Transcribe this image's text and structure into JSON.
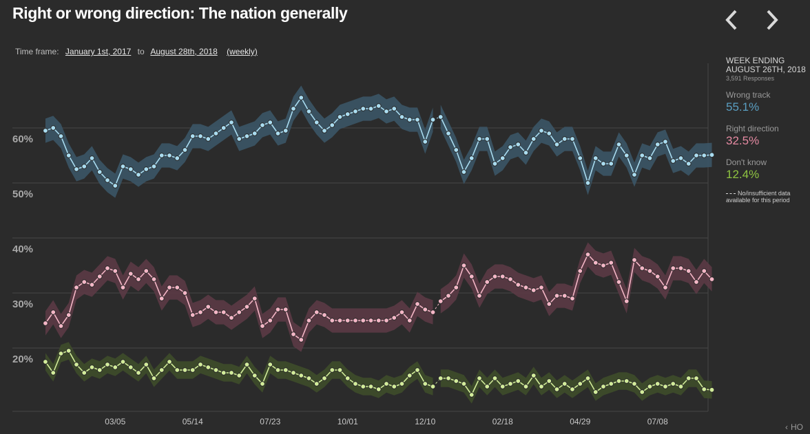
{
  "title": "Right or wrong direction: The nation generally",
  "timeframe": {
    "label": "Time frame:",
    "start": "January 1st, 2017",
    "to": "to",
    "end": "August 28th, 2018",
    "interval": "(weekly)"
  },
  "nav": {
    "prev_icon": "chevron-left-icon",
    "next_icon": "chevron-right-icon"
  },
  "sidebar": {
    "week_label": "WEEK ENDING",
    "week_date": "AUGUST 26TH, 2018",
    "responses": "3,591 Responses",
    "legend": [
      {
        "label": "Wrong track",
        "value": "55.1%",
        "color": "#5a9fc2"
      },
      {
        "label": "Right direction",
        "value": "32.5%",
        "color": "#e58aa2"
      },
      {
        "label": "Don't know",
        "value": "12.4%",
        "color": "#8fc441"
      }
    ],
    "note": "No/insufficient data available for this period"
  },
  "corner_label": "HO",
  "chart_data": {
    "type": "line",
    "x_ticks": [
      "03/05",
      "05/14",
      "07/23",
      "10/01",
      "12/10",
      "02/18",
      "04/29",
      "07/08"
    ],
    "y_ticks": [
      "60%",
      "50%",
      "40%",
      "30%",
      "20%"
    ],
    "gap_after_index": 50,
    "series": [
      {
        "name": "Wrong track",
        "color": "#a9dcf0",
        "band": "#3b5566",
        "values": [
          59.5,
          60,
          58.5,
          55,
          52.5,
          53,
          54.5,
          52,
          50.5,
          49.5,
          53,
          52.5,
          51.5,
          52.5,
          53,
          55,
          55,
          54.5,
          56,
          58.5,
          58.5,
          58,
          59,
          60,
          61,
          58,
          58.5,
          59,
          60.5,
          61,
          59,
          59.5,
          63.5,
          65.5,
          63,
          61,
          59.5,
          60.5,
          62,
          62.5,
          63,
          63.5,
          63.5,
          64,
          63,
          63.5,
          62,
          61.5,
          61.5,
          57.5,
          61.5,
          62,
          59,
          56,
          52,
          54.5,
          58,
          58,
          53.5,
          54.5,
          56.5,
          57,
          55.5,
          58,
          59.5,
          59,
          57,
          58,
          58,
          54.5,
          50,
          54.5,
          53.5,
          53.5,
          57,
          55,
          51.5,
          55,
          54.5,
          57,
          57.5,
          54,
          54.5,
          53.5,
          55,
          55,
          55.1
        ]
      },
      {
        "name": "Right direction",
        "color": "#f4b6c6",
        "band": "#5b3a45",
        "values": [
          24.5,
          26.5,
          24,
          26,
          31,
          32,
          31.5,
          33,
          34.5,
          34,
          31,
          33.5,
          32.5,
          34,
          32.5,
          29,
          31,
          31,
          30,
          26,
          26.5,
          27.5,
          26.5,
          26.5,
          25.5,
          26.5,
          27.5,
          29,
          24,
          25,
          27,
          27,
          22.5,
          21.5,
          25,
          26.5,
          26,
          25,
          25,
          25,
          25,
          25,
          25,
          25,
          25,
          25.5,
          26.5,
          25,
          28,
          27,
          26.5,
          28.5,
          29.5,
          31,
          35,
          33,
          29.5,
          32,
          33,
          33,
          32.5,
          31.5,
          31,
          30.5,
          31,
          28,
          29.5,
          29.5,
          29,
          34,
          37,
          35.5,
          35,
          35.5,
          32,
          28.5,
          36,
          34.5,
          34,
          33,
          31,
          34.5,
          34.5,
          34,
          32,
          34,
          32.5
        ]
      },
      {
        "name": "Don't know",
        "color": "#d2ec9a",
        "band": "#3e4d2a",
        "values": [
          17.5,
          15.5,
          19,
          19.5,
          17,
          15.5,
          16.5,
          16,
          17,
          16.5,
          17.5,
          16.5,
          15.5,
          17,
          14.5,
          16,
          17.5,
          16,
          16,
          16,
          17,
          16.5,
          16,
          15.5,
          15.5,
          15,
          17,
          15,
          13.5,
          17,
          16,
          16,
          15.5,
          15,
          14.5,
          13.5,
          14.5,
          16,
          16,
          14.5,
          13.5,
          13,
          13,
          12.5,
          13.5,
          13,
          13.5,
          15,
          16,
          13.5,
          13,
          14.5,
          14.5,
          14,
          13.5,
          11.5,
          14.5,
          13,
          14.5,
          13,
          13.5,
          14,
          13,
          15,
          13,
          14,
          12.5,
          13.5,
          12.5,
          13.5,
          14.5,
          12,
          13,
          13.5,
          14,
          14,
          13.5,
          12,
          13,
          13.5,
          13,
          13.5,
          13,
          14.5,
          14.5,
          12.5,
          12.4
        ]
      }
    ]
  }
}
